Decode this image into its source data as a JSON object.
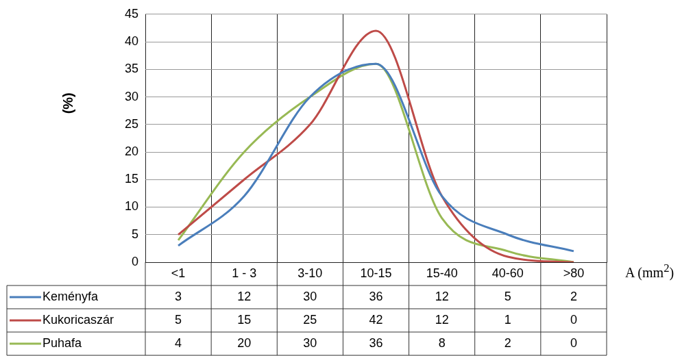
{
  "chart_data": {
    "type": "line",
    "ylabel": "(%)",
    "xlabel": "A (mm$^{2}$)",
    "categories": [
      "<1",
      "1 - 3",
      "3-10",
      "10-15",
      "15-40",
      "40-60",
      ">80"
    ],
    "series": [
      {
        "name": "Keményfa",
        "color": "#4a7ebb",
        "values": [
          3,
          12,
          30,
          36,
          12,
          5,
          2
        ]
      },
      {
        "name": "Kukoricaszár",
        "color": "#be4b48",
        "values": [
          5,
          15,
          25,
          42,
          12,
          1,
          0
        ]
      },
      {
        "name": "Puhafa",
        "color": "#98b954",
        "values": [
          4,
          20,
          30,
          36,
          8,
          2,
          0
        ]
      }
    ],
    "ylim": [
      0,
      45
    ],
    "yticks": [
      0,
      5,
      10,
      15,
      20,
      25,
      30,
      35,
      40,
      45
    ],
    "grid": true,
    "legend": "bottom",
    "data_labels": true,
    "marker": "none",
    "line_style": "solid"
  }
}
